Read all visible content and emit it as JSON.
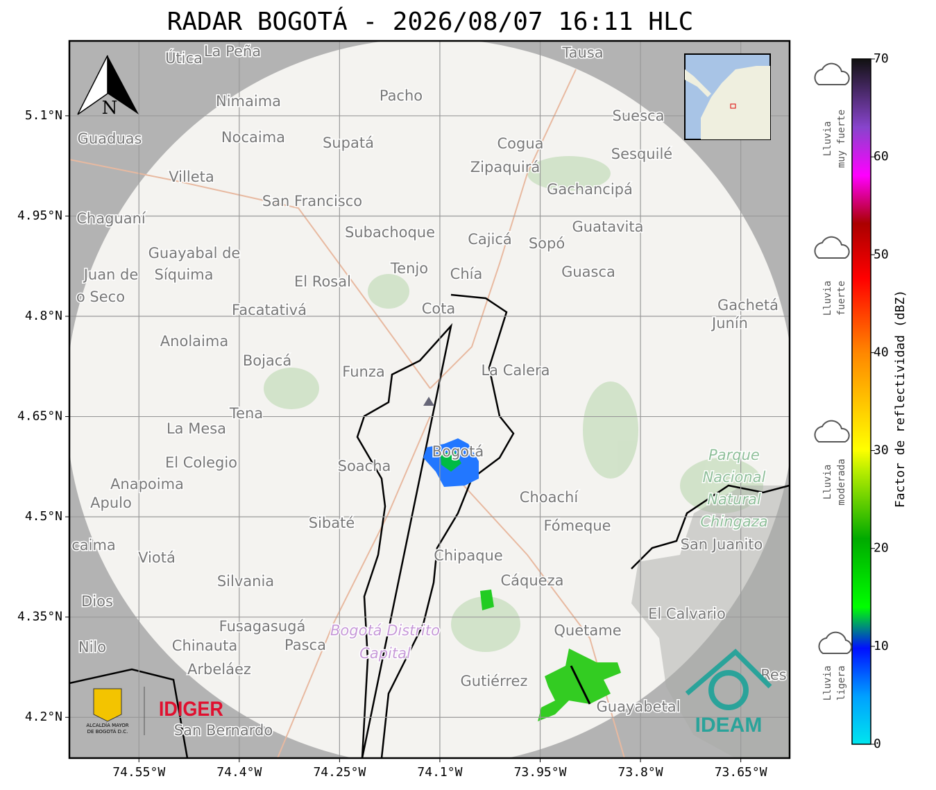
{
  "title": "RADAR BOGOTÁ - 2026/08/07 16:11 HLC",
  "map": {
    "xlim": [
      -74.654,
      -73.577
    ],
    "ylim": [
      4.139,
      5.212
    ],
    "xticks": [
      {
        "value": -74.55,
        "label": "74.55°W"
      },
      {
        "value": -74.4,
        "label": "74.4°W"
      },
      {
        "value": -74.25,
        "label": "74.25°W"
      },
      {
        "value": -74.1,
        "label": "74.1°W"
      },
      {
        "value": -73.95,
        "label": "73.95°W"
      },
      {
        "value": -73.8,
        "label": "73.8°W"
      },
      {
        "value": -73.65,
        "label": "73.65°W"
      }
    ],
    "yticks": [
      {
        "value": 5.1,
        "label": "5.1°N"
      },
      {
        "value": 4.95,
        "label": "4.95°N"
      },
      {
        "value": 4.8,
        "label": "4.8°N"
      },
      {
        "value": 4.65,
        "label": "4.65°N"
      },
      {
        "value": 4.5,
        "label": "4.5°N"
      },
      {
        "value": 4.35,
        "label": "4.35°N"
      },
      {
        "value": 4.2,
        "label": "4.2°N"
      }
    ],
    "north": "N",
    "places": [
      "Útica",
      "La Peña",
      "Tausa",
      "Pacho",
      "Nimaima",
      "Guaduas",
      "Nocaima",
      "Supatá",
      "Cogua",
      "Suesca",
      "Sesquilé",
      "Zipaquirá",
      "Villeta",
      "Gachancipá",
      "San Francisco",
      "Chaguaní",
      "Guatavita",
      "Subachoque",
      "Cajicá",
      "Sopó",
      "Guayabal de",
      "Síquima",
      "Tenjo",
      "Chía",
      "Guasca",
      "Juan de",
      "El Rosal",
      "o Seco",
      "Facatativá",
      "Cota",
      "Gachetá",
      "Junín",
      "Anolaima",
      "Bojacá",
      "Funza",
      "La Calera",
      "Tena",
      "La Mesa",
      "Bogotá",
      "Soacha",
      "El Colegio",
      "Anapoima",
      "Apulo",
      "Choachí",
      "Sibaté",
      "Fómeque",
      "San Juanito",
      "caima",
      "Viotá",
      "Chipaque",
      "Silvania",
      "Cáqueza",
      "Dios",
      "El Calvario",
      "Fusagasugá",
      "Quetame",
      "Nilo",
      "Chinauta",
      "Pasca",
      "Arbeláez",
      "Gutiérrez",
      "Guayabetal",
      "San Bernardo",
      "Res"
    ],
    "park": [
      "Parque",
      "Nacional",
      "Natural",
      "Chingaza"
    ],
    "district": [
      "Bogotá Distrito",
      "Capital"
    ]
  },
  "logos": {
    "alcaldia": [
      "ALCALDÍA MAYOR",
      "DE BOGOTÁ D.C."
    ],
    "idiger": "IDIGER",
    "ideam": "IDEAM"
  },
  "colorbar": {
    "label": "Factor de reflectividad (dBZ)",
    "lim": [
      0,
      70
    ],
    "ticks": [
      0,
      10,
      20,
      30,
      40,
      50,
      60,
      70
    ]
  },
  "rain": [
    [
      "Lluvia",
      "muy fuerte"
    ],
    [
      "Lluvia",
      "fuerte"
    ],
    [
      "Lluvia",
      "moderada"
    ],
    [
      "Lluvia",
      "ligera"
    ]
  ]
}
